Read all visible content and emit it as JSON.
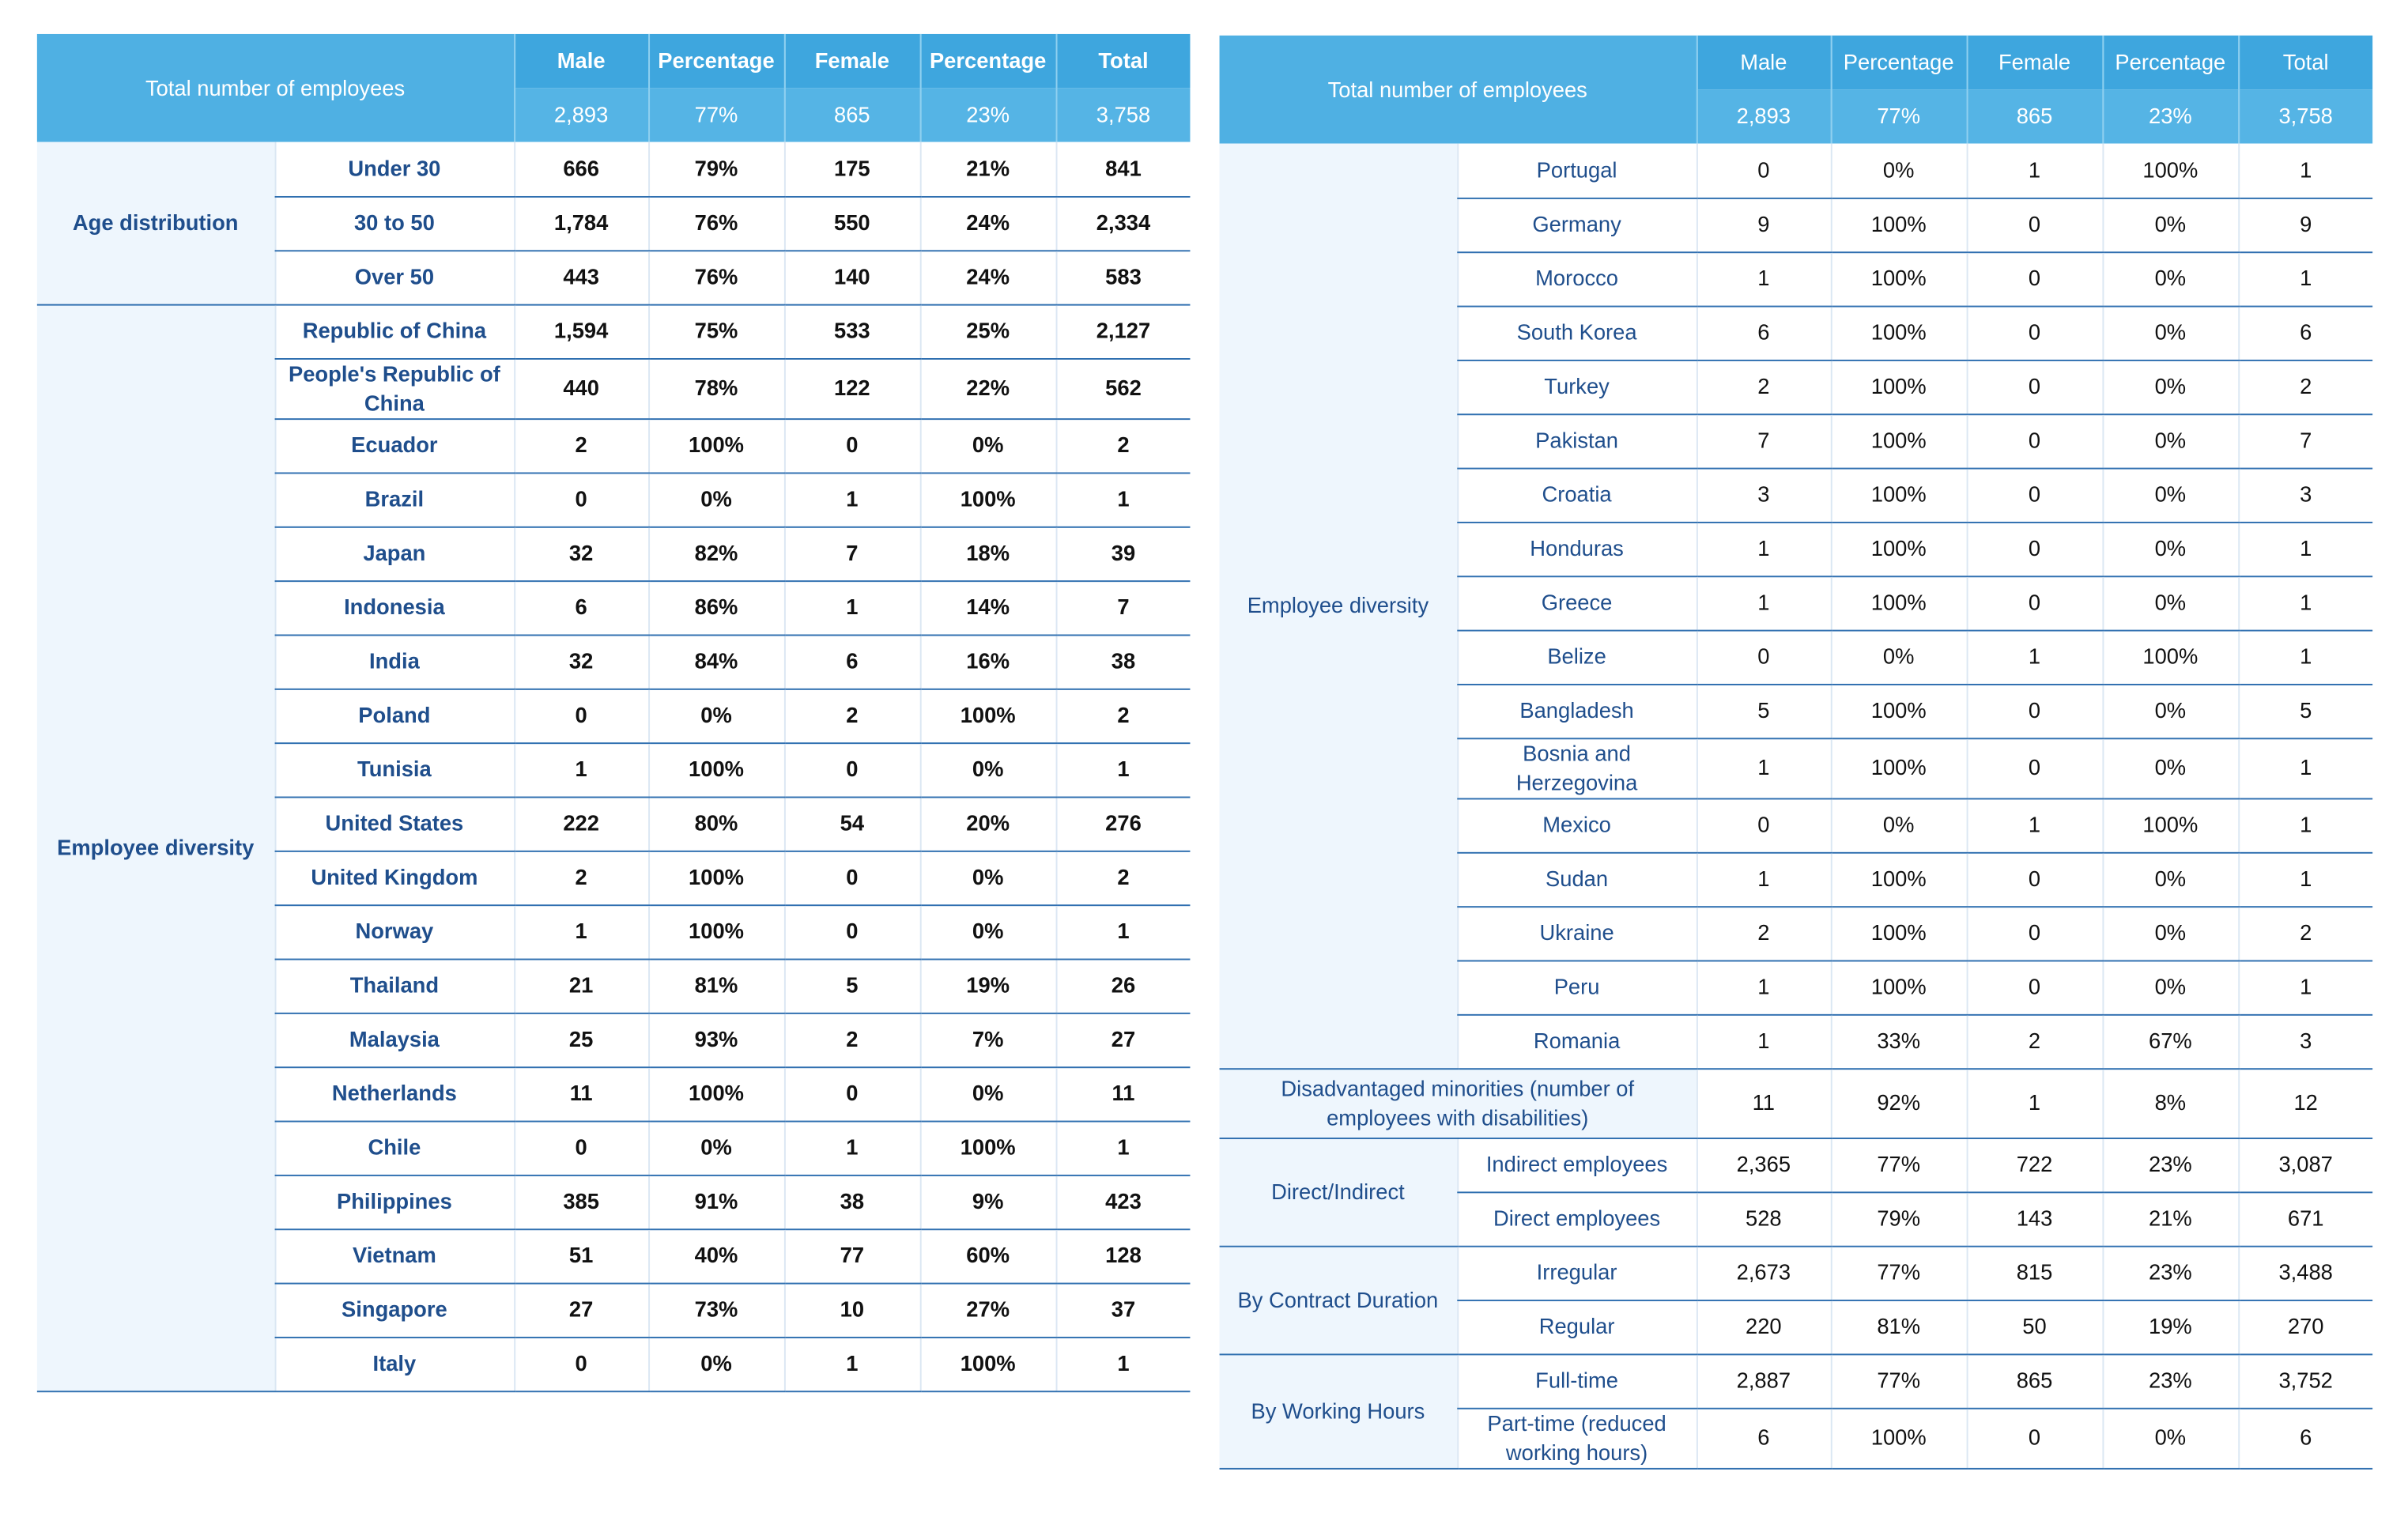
{
  "tables": [
    {
      "header": {
        "title": "Total number of employees",
        "columns": [
          "Male",
          "Percentage",
          "Female",
          "Percentage",
          "Total"
        ],
        "totals": [
          "2,893",
          "77%",
          "865",
          "23%",
          "3,758"
        ]
      },
      "groups": [
        {
          "label": "Age distribution",
          "rows": [
            {
              "label": "Under 30",
              "values": [
                "666",
                "79%",
                "175",
                "21%",
                "841"
              ]
            },
            {
              "label": "30 to 50",
              "values": [
                "1,784",
                "76%",
                "550",
                "24%",
                "2,334"
              ]
            },
            {
              "label": "Over 50",
              "values": [
                "443",
                "76%",
                "140",
                "24%",
                "583"
              ]
            }
          ]
        },
        {
          "label": "Employee diversity",
          "rows": [
            {
              "label": "Republic of China",
              "values": [
                "1,594",
                "75%",
                "533",
                "25%",
                "2,127"
              ]
            },
            {
              "label": "People's Republic of China",
              "values": [
                "440",
                "78%",
                "122",
                "22%",
                "562"
              ]
            },
            {
              "label": "Ecuador",
              "values": [
                "2",
                "100%",
                "0",
                "0%",
                "2"
              ]
            },
            {
              "label": "Brazil",
              "values": [
                "0",
                "0%",
                "1",
                "100%",
                "1"
              ]
            },
            {
              "label": "Japan",
              "values": [
                "32",
                "82%",
                "7",
                "18%",
                "39"
              ]
            },
            {
              "label": "Indonesia",
              "values": [
                "6",
                "86%",
                "1",
                "14%",
                "7"
              ]
            },
            {
              "label": "India",
              "values": [
                "32",
                "84%",
                "6",
                "16%",
                "38"
              ]
            },
            {
              "label": "Poland",
              "values": [
                "0",
                "0%",
                "2",
                "100%",
                "2"
              ]
            },
            {
              "label": "Tunisia",
              "values": [
                "1",
                "100%",
                "0",
                "0%",
                "1"
              ]
            },
            {
              "label": "United States",
              "values": [
                "222",
                "80%",
                "54",
                "20%",
                "276"
              ]
            },
            {
              "label": "United Kingdom",
              "values": [
                "2",
                "100%",
                "0",
                "0%",
                "2"
              ]
            },
            {
              "label": "Norway",
              "values": [
                "1",
                "100%",
                "0",
                "0%",
                "1"
              ]
            },
            {
              "label": "Thailand",
              "values": [
                "21",
                "81%",
                "5",
                "19%",
                "26"
              ]
            },
            {
              "label": "Malaysia",
              "values": [
                "25",
                "93%",
                "2",
                "7%",
                "27"
              ]
            },
            {
              "label": "Netherlands",
              "values": [
                "11",
                "100%",
                "0",
                "0%",
                "11"
              ]
            },
            {
              "label": "Chile",
              "values": [
                "0",
                "0%",
                "1",
                "100%",
                "1"
              ]
            },
            {
              "label": "Philippines",
              "values": [
                "385",
                "91%",
                "38",
                "9%",
                "423"
              ]
            },
            {
              "label": "Vietnam",
              "values": [
                "51",
                "40%",
                "77",
                "60%",
                "128"
              ]
            },
            {
              "label": "Singapore",
              "values": [
                "27",
                "73%",
                "10",
                "27%",
                "37"
              ]
            },
            {
              "label": "Italy",
              "values": [
                "0",
                "0%",
                "1",
                "100%",
                "1"
              ]
            }
          ]
        }
      ]
    },
    {
      "header": {
        "title": "Total number of employees",
        "columns": [
          "Male",
          "Percentage",
          "Female",
          "Percentage",
          "Total"
        ],
        "totals": [
          "2,893",
          "77%",
          "865",
          "23%",
          "3,758"
        ]
      },
      "groups": [
        {
          "label": "Employee diversity",
          "rows": [
            {
              "label": "Portugal",
              "values": [
                "0",
                "0%",
                "1",
                "100%",
                "1"
              ]
            },
            {
              "label": "Germany",
              "values": [
                "9",
                "100%",
                "0",
                "0%",
                "9"
              ]
            },
            {
              "label": "Morocco",
              "values": [
                "1",
                "100%",
                "0",
                "0%",
                "1"
              ]
            },
            {
              "label": "South Korea",
              "values": [
                "6",
                "100%",
                "0",
                "0%",
                "6"
              ]
            },
            {
              "label": "Turkey",
              "values": [
                "2",
                "100%",
                "0",
                "0%",
                "2"
              ]
            },
            {
              "label": "Pakistan",
              "values": [
                "7",
                "100%",
                "0",
                "0%",
                "7"
              ]
            },
            {
              "label": "Croatia",
              "values": [
                "3",
                "100%",
                "0",
                "0%",
                "3"
              ]
            },
            {
              "label": "Honduras",
              "values": [
                "1",
                "100%",
                "0",
                "0%",
                "1"
              ]
            },
            {
              "label": "Greece",
              "values": [
                "1",
                "100%",
                "0",
                "0%",
                "1"
              ]
            },
            {
              "label": "Belize",
              "values": [
                "0",
                "0%",
                "1",
                "100%",
                "1"
              ]
            },
            {
              "label": "Bangladesh",
              "values": [
                "5",
                "100%",
                "0",
                "0%",
                "5"
              ]
            },
            {
              "label": "Bosnia and Herzegovina",
              "values": [
                "1",
                "100%",
                "0",
                "0%",
                "1"
              ]
            },
            {
              "label": "Mexico",
              "values": [
                "0",
                "0%",
                "1",
                "100%",
                "1"
              ]
            },
            {
              "label": "Sudan",
              "values": [
                "1",
                "100%",
                "0",
                "0%",
                "1"
              ]
            },
            {
              "label": "Ukraine",
              "values": [
                "2",
                "100%",
                "0",
                "0%",
                "2"
              ]
            },
            {
              "label": "Peru",
              "values": [
                "1",
                "100%",
                "0",
                "0%",
                "1"
              ]
            },
            {
              "label": "Romania",
              "values": [
                "1",
                "33%",
                "2",
                "67%",
                "3"
              ]
            }
          ]
        },
        {
          "label": "Disadvantaged minorities (number of employees with disabilities)",
          "values": [
            "11",
            "92%",
            "1",
            "8%",
            "12"
          ]
        },
        {
          "label": "Direct/Indirect",
          "rows": [
            {
              "label": "Indirect employees",
              "values": [
                "2,365",
                "77%",
                "722",
                "23%",
                "3,087"
              ]
            },
            {
              "label": "Direct employees",
              "values": [
                "528",
                "79%",
                "143",
                "21%",
                "671"
              ]
            }
          ]
        },
        {
          "label": "By Contract Duration",
          "rows": [
            {
              "label": "Irregular",
              "values": [
                "2,673",
                "77%",
                "815",
                "23%",
                "3,488"
              ]
            },
            {
              "label": "Regular",
              "values": [
                "220",
                "81%",
                "50",
                "19%",
                "270"
              ]
            }
          ]
        },
        {
          "label": "By Working Hours",
          "rows": [
            {
              "label": "Full-time",
              "values": [
                "2,887",
                "77%",
                "865",
                "23%",
                "3,752"
              ]
            },
            {
              "label": "Part-time (reduced working hours)",
              "values": [
                "6",
                "100%",
                "0",
                "0%",
                "6"
              ]
            }
          ]
        }
      ]
    }
  ]
}
